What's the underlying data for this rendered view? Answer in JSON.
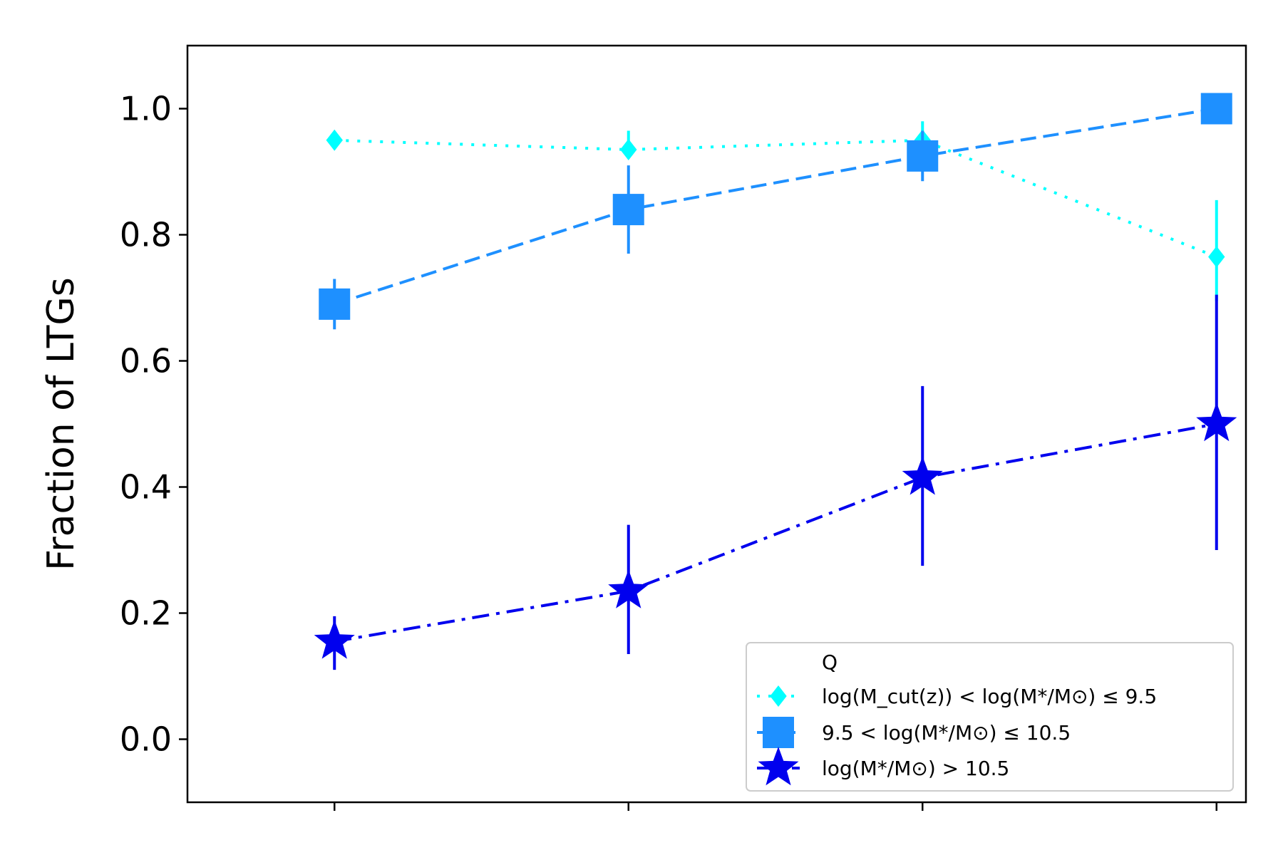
{
  "chart_data": {
    "type": "line",
    "title": "",
    "xlabel": "",
    "ylabel": "Fraction of LTGs",
    "x": [
      1,
      2,
      3,
      4
    ],
    "xlim": [
      0.5,
      4.1
    ],
    "ylim": [
      -0.1,
      1.1
    ],
    "yticks": [
      "0.0",
      "0.2",
      "0.4",
      "0.6",
      "0.8",
      "1.0"
    ],
    "grid": false,
    "legend": {
      "placement": "lower-right",
      "title": "Q"
    },
    "series": [
      {
        "name": "log(M_cut(z)) < log(M*/M⊙) ≤ 9.5",
        "color": "#00FFFF",
        "linestyle": "dotted",
        "marker": "diamond",
        "values": [
          0.95,
          0.935,
          0.95,
          0.765
        ],
        "err_low": [
          0.0,
          0.0,
          0.03,
          0.07
        ],
        "err_high": [
          0.0,
          0.03,
          0.03,
          0.09
        ]
      },
      {
        "name": "9.5 < log(M*/M⊙) ≤ 10.5",
        "color": "#1E90FF",
        "linestyle": "dashed",
        "marker": "square",
        "values": [
          0.69,
          0.84,
          0.925,
          1.0
        ],
        "err_low": [
          0.04,
          0.07,
          0.04,
          0.0
        ],
        "err_high": [
          0.04,
          0.07,
          0.04,
          0.0
        ]
      },
      {
        "name": "log(M*/M⊙) > 10.5",
        "color": "#0000EE",
        "linestyle": "dashdot",
        "marker": "star",
        "values": [
          0.155,
          0.235,
          0.415,
          0.5
        ],
        "err_low": [
          0.045,
          0.1,
          0.14,
          0.2
        ],
        "err_high": [
          0.04,
          0.105,
          0.145,
          0.205
        ]
      }
    ]
  }
}
